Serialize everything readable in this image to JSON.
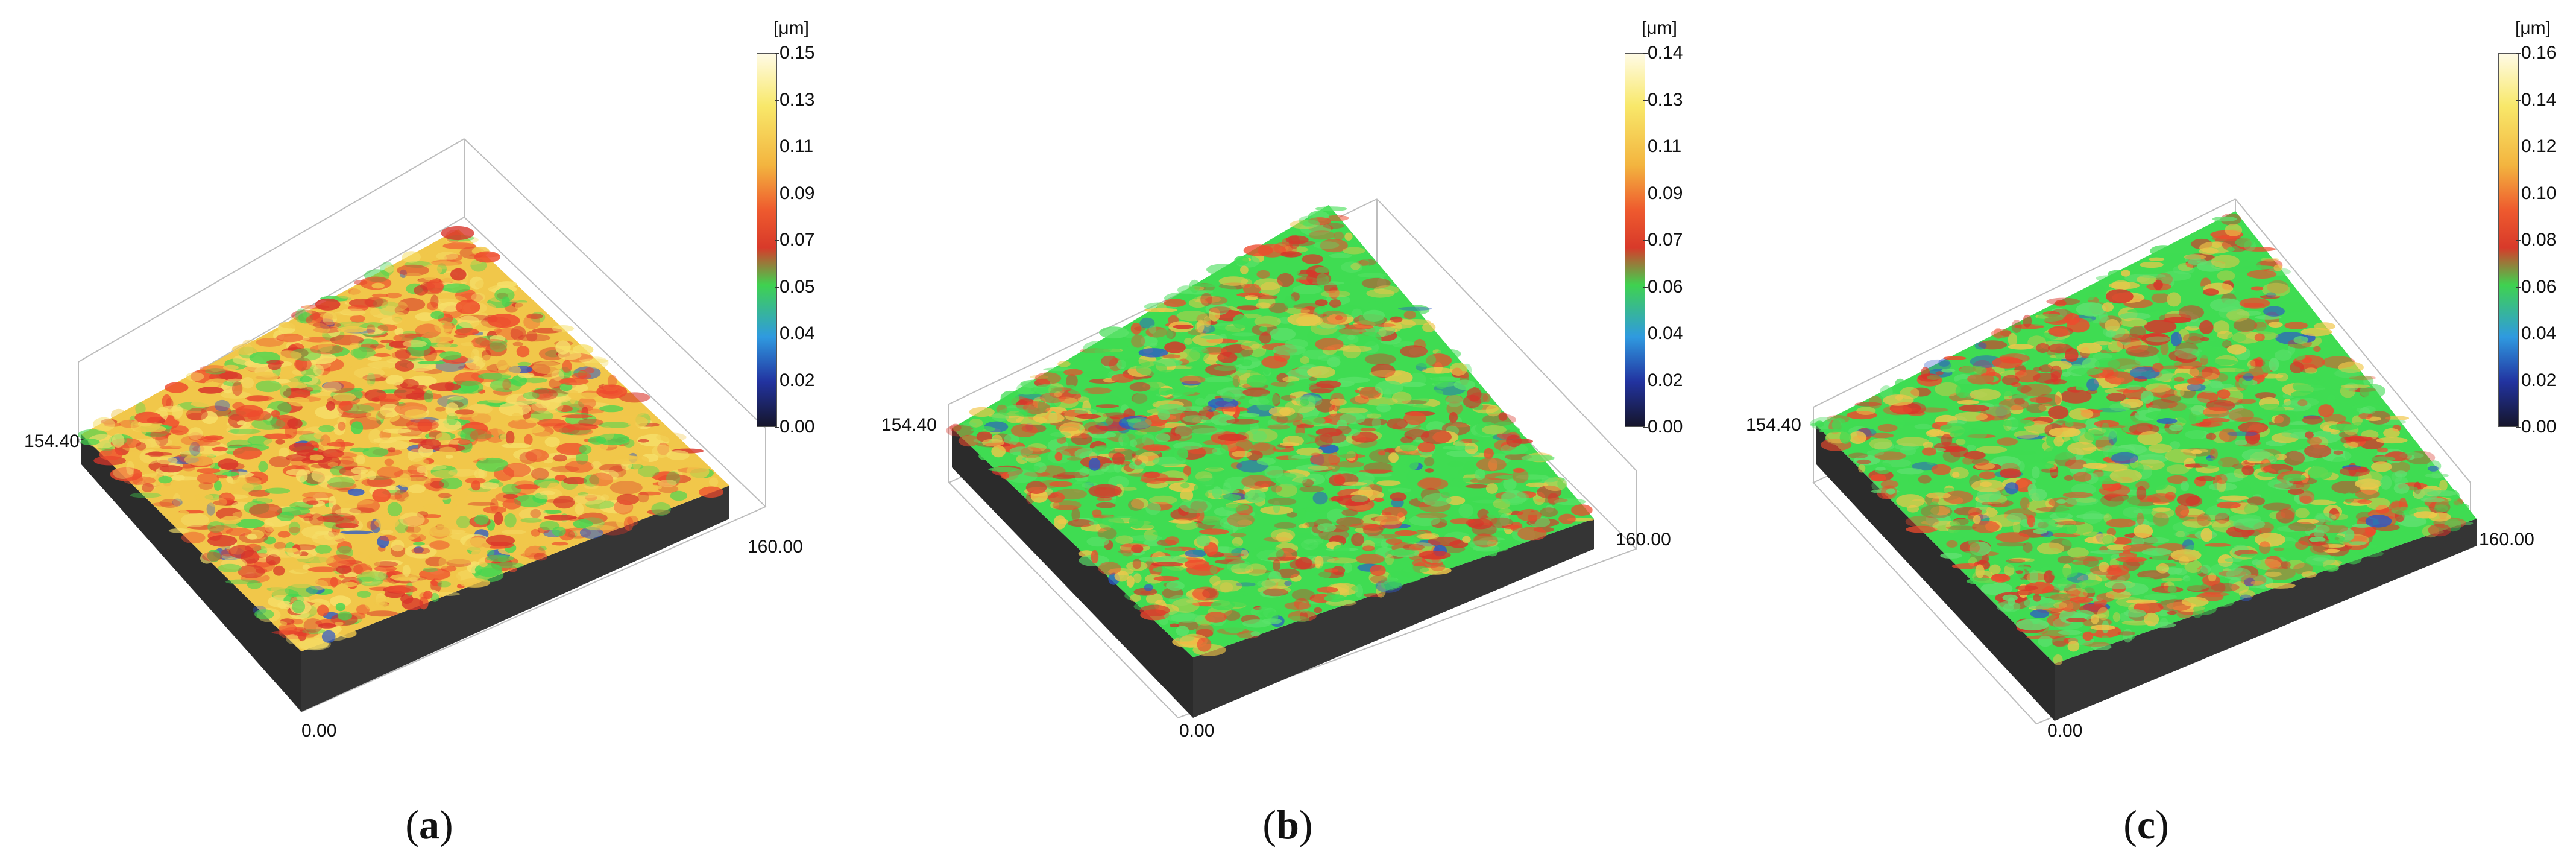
{
  "panels": [
    {
      "letter": "a",
      "unit": "[μm]",
      "colorbar_ticks": [
        "0.15",
        "0.13",
        "0.11",
        "0.09",
        "0.07",
        "0.05",
        "0.04",
        "0.02",
        "0.00"
      ],
      "axis_y_label": "154.40",
      "axis_x_label": "160.00",
      "origin_label": "0.00",
      "colors": [
        "#f1c74a",
        "#ee4a2d",
        "#44d650",
        "#f6e06b",
        "#d8342a",
        "#2c58c8"
      ]
    },
    {
      "letter": "b",
      "unit": "[μm]",
      "colorbar_ticks": [
        "0.14",
        "0.13",
        "0.11",
        "0.09",
        "0.07",
        "0.06",
        "0.04",
        "0.02",
        "0.00"
      ],
      "axis_y_label": "154.40",
      "axis_x_label": "160.00",
      "origin_label": "0.00",
      "colors": [
        "#ee4a2d",
        "#3fdc52",
        "#f1c74a",
        "#d8342a",
        "#5be26a",
        "#2c58c8"
      ]
    },
    {
      "letter": "c",
      "unit": "[μm]",
      "colorbar_ticks": [
        "0.16",
        "0.14",
        "0.12",
        "0.10",
        "0.08",
        "0.06",
        "0.04",
        "0.02",
        "0.00"
      ],
      "axis_y_label": "154.40",
      "axis_x_label": "160.00",
      "origin_label": "0.00",
      "colors": [
        "#3fdc52",
        "#ee4a2d",
        "#f1c74a",
        "#d8342a",
        "#60e070",
        "#2c58c8"
      ]
    }
  ]
}
